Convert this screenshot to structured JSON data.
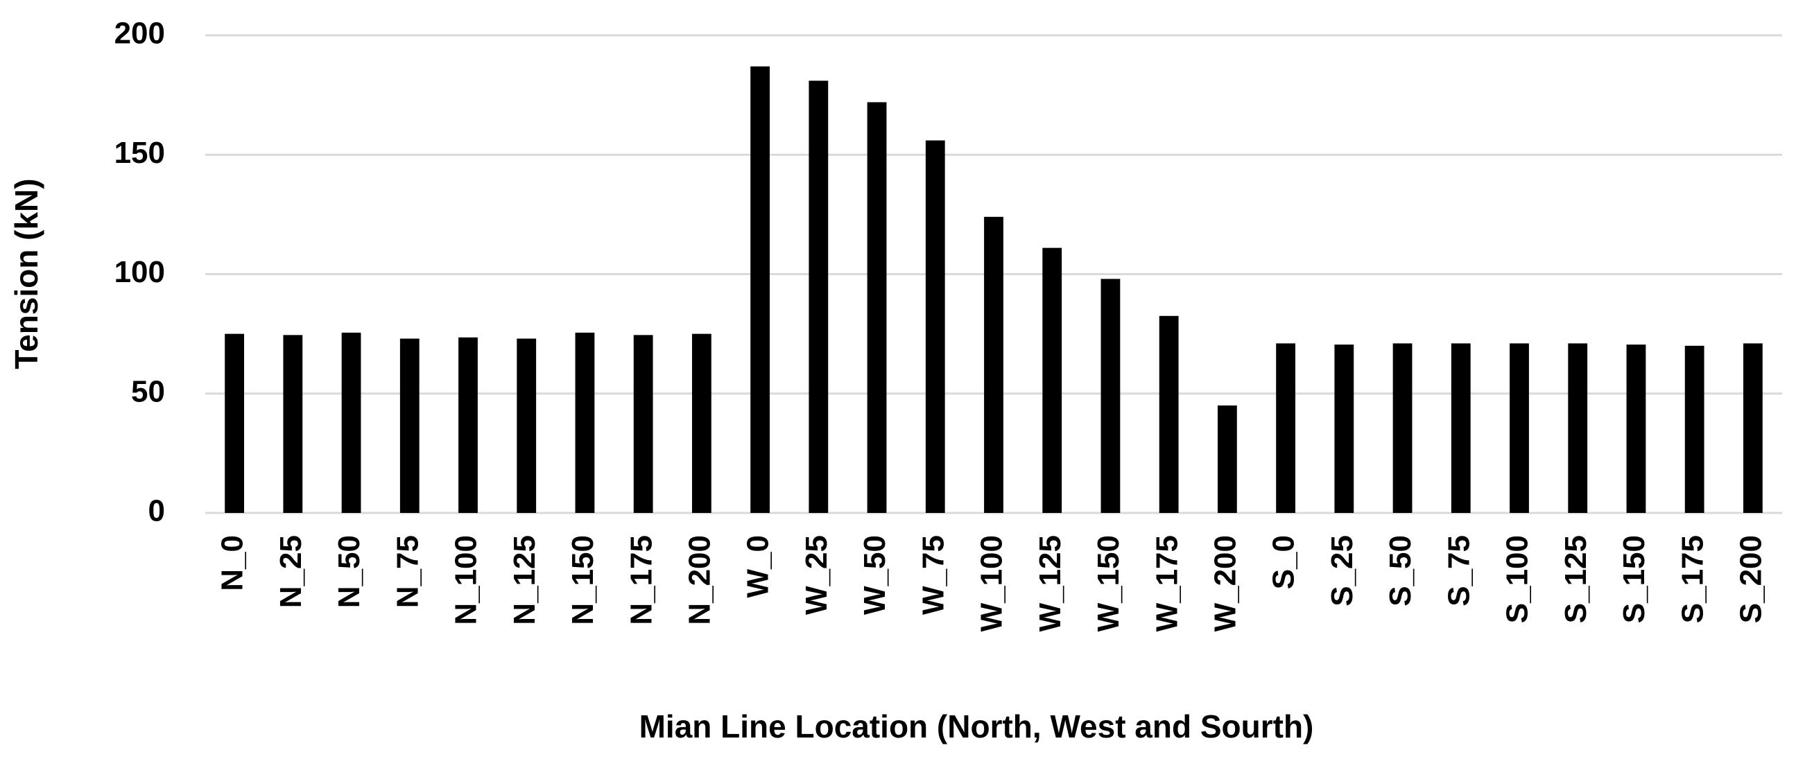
{
  "chart_data": {
    "type": "bar",
    "x_label": "Mian Line Location (North, West and Sourth)",
    "y_label": "Tension (kN)",
    "categories": [
      "N_0",
      "N_25",
      "N_50",
      "N_75",
      "N_100",
      "N_125",
      "N_150",
      "N_175",
      "N_200",
      "W_0",
      "W_25",
      "W_50",
      "W_75",
      "W_100",
      "W_125",
      "W_150",
      "W_175",
      "W_200",
      "S_0",
      "S_25",
      "S_50",
      "S_75",
      "S_100",
      "S_125",
      "S_150",
      "S_175",
      "S_200"
    ],
    "values": [
      75,
      74.5,
      75.5,
      73,
      73.5,
      73,
      75.5,
      74.5,
      75,
      187,
      181,
      172,
      156,
      124,
      111,
      98,
      82.5,
      45,
      71,
      70.5,
      71,
      71,
      71,
      71,
      70.5,
      70,
      71
    ],
    "color": "#000000",
    "ylim": [
      0,
      200
    ],
    "yticks": [
      0,
      50,
      100,
      150,
      200
    ],
    "grid": true
  }
}
